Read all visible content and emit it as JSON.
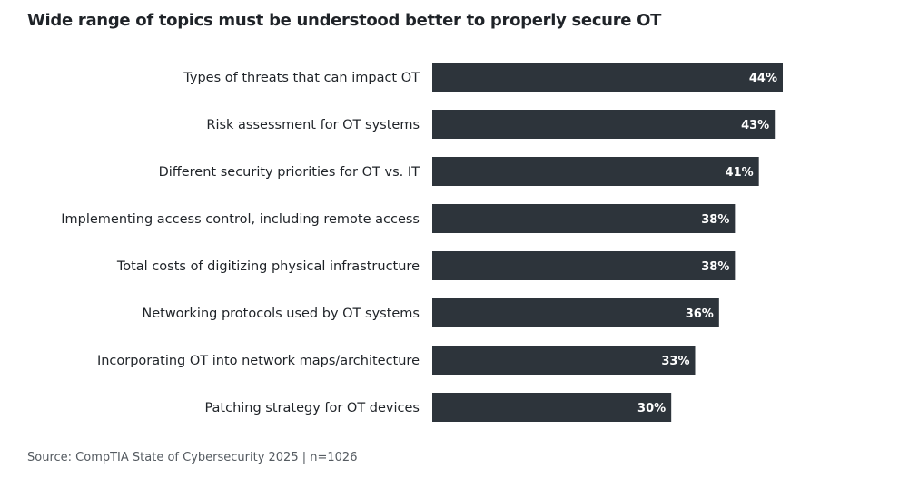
{
  "chart_data": {
    "type": "bar",
    "orientation": "horizontal",
    "title": "Wide range of topics must be understood better to properly secure OT",
    "categories": [
      "Types of threats that can impact OT",
      "Risk assessment for OT systems",
      "Different security priorities for OT vs. IT",
      "Implementing access control, including remote access",
      "Total costs of digitizing physical infrastructure",
      "Networking protocols used by OT systems",
      "Incorporating OT into network maps/architecture",
      "Patching strategy for OT devices"
    ],
    "values": [
      44,
      43,
      41,
      38,
      38,
      36,
      33,
      30
    ],
    "data_labels": [
      "44%",
      "43%",
      "41%",
      "38%",
      "38%",
      "36%",
      "33%",
      "30%"
    ],
    "unit": "%",
    "xlabel": "",
    "ylabel": "",
    "grid": false,
    "bar_color": "#2d343b",
    "label_color": "#ffffff"
  },
  "source": "Source: CompTIA State of Cybersecurity 2025 | n=1026"
}
